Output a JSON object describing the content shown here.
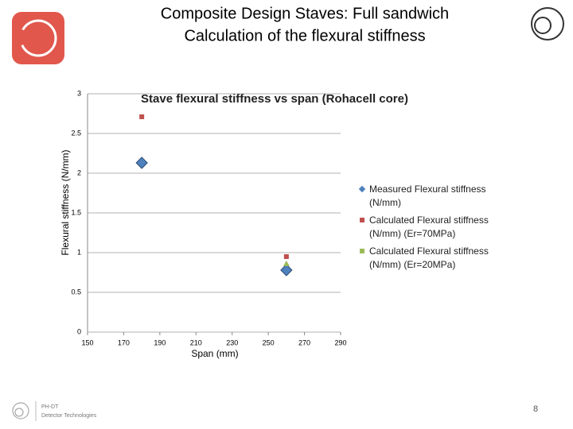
{
  "slide": {
    "title_lines": [
      "Composite Design Staves: Full sandwich",
      "Calculation of the flexural stiffness"
    ],
    "footer_lines": [
      "PH-DT",
      "Detector Technologies"
    ],
    "page_number": "8"
  },
  "chart_data": {
    "type": "scatter",
    "title": "Stave flexural stiffness vs span (Rohacell core)",
    "x_label": "Span (mm)",
    "y_label": "Flexural stiffness (N/mm)",
    "x": [
      180,
      260
    ],
    "series": [
      {
        "name": "Measured Flexural stiffness (N/mm)",
        "color": "#4f81bd",
        "marker": "diamond",
        "values": [
          2.13,
          0.78
        ]
      },
      {
        "name": "Calculated Flexural stiffness (N/mm) (Er=70MPa)",
        "color": "#c0504d",
        "marker": "square",
        "values": [
          2.71,
          0.95
        ]
      },
      {
        "name": "Calculated Flexural stiffness (N/mm) (Er=20MPa)",
        "color": "#9bbb59",
        "marker": "triangle",
        "values": [
          null,
          0.86
        ]
      }
    ],
    "xlim": [
      150,
      290
    ],
    "xticks": [
      150,
      170,
      190,
      210,
      230,
      250,
      270,
      290
    ],
    "ylim": [
      0,
      3
    ],
    "yticks": [
      0,
      0.5,
      1,
      1.5,
      2,
      2.5,
      3
    ],
    "grid": true,
    "legend": "right"
  }
}
